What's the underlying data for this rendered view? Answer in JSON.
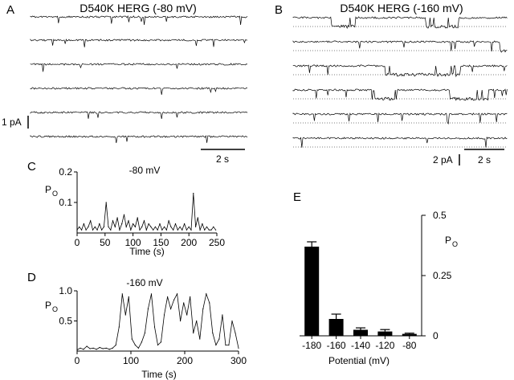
{
  "panels": {
    "A": {
      "letter": "A",
      "title": "D540K HERG (-80 mV)",
      "scale_current": "1 pA",
      "scale_time": "2 s",
      "trace_count": 6
    },
    "B": {
      "letter": "B",
      "title": "D540K HERG (-160 mV)",
      "scale_current": "2 pA",
      "scale_time": "2 s",
      "trace_count": 6
    }
  },
  "chart_data": [
    {
      "id": "C",
      "letter": "C",
      "type": "line",
      "annotation": "-80 mV",
      "ylabel": "P",
      "ylabel_sub": "O",
      "xlabel": "Time (s)",
      "xlim": [
        0,
        250
      ],
      "ylim": [
        0,
        0.2
      ],
      "xticks": [
        0,
        50,
        100,
        150,
        200,
        250
      ],
      "yticks": [
        0.1,
        0.2
      ],
      "ytick_labels": [
        "0.1",
        "0.2"
      ],
      "x": [
        0,
        4,
        8,
        12,
        16,
        20,
        24,
        28,
        32,
        36,
        40,
        44,
        48,
        52,
        56,
        60,
        64,
        68,
        72,
        76,
        80,
        84,
        88,
        92,
        96,
        100,
        104,
        108,
        112,
        116,
        120,
        124,
        128,
        132,
        136,
        140,
        144,
        148,
        152,
        156,
        160,
        164,
        168,
        172,
        176,
        180,
        184,
        188,
        192,
        196,
        200,
        204,
        208,
        212,
        216,
        220,
        224,
        228,
        232,
        236,
        240,
        244,
        248
      ],
      "values": [
        0.01,
        0.02,
        0.01,
        0.03,
        0.01,
        0.02,
        0.04,
        0.01,
        0.02,
        0.01,
        0.03,
        0.01,
        0.02,
        0.1,
        0.02,
        0.01,
        0.04,
        0.02,
        0.05,
        0.01,
        0.03,
        0.06,
        0.02,
        0.04,
        0.01,
        0.03,
        0.02,
        0.05,
        0.01,
        0.02,
        0.04,
        0.01,
        0.03,
        0.02,
        0.01,
        0.02,
        0.01,
        0.03,
        0.01,
        0.02,
        0.01,
        0.04,
        0.02,
        0.01,
        0.03,
        0.01,
        0.02,
        0.01,
        0.03,
        0.01,
        0.02,
        0.01,
        0.13,
        0.02,
        0.05,
        0.01,
        0.03,
        0.01,
        0.02,
        0.01,
        0.01,
        0.02,
        0.01
      ]
    },
    {
      "id": "D",
      "letter": "D",
      "type": "line",
      "annotation": "-160 mV",
      "ylabel": "P",
      "ylabel_sub": "O",
      "xlabel": "Time (s)",
      "xlim": [
        0,
        300
      ],
      "ylim": [
        0,
        1.0
      ],
      "xticks": [
        0,
        100,
        200,
        300
      ],
      "yticks": [
        0.5,
        1.0
      ],
      "ytick_labels": [
        "0.5",
        "1.0"
      ],
      "x": [
        0,
        6,
        12,
        18,
        24,
        30,
        36,
        42,
        48,
        54,
        60,
        66,
        72,
        78,
        84,
        90,
        96,
        102,
        108,
        114,
        120,
        126,
        132,
        138,
        144,
        150,
        156,
        162,
        168,
        174,
        180,
        186,
        192,
        198,
        204,
        210,
        216,
        222,
        228,
        234,
        240,
        246,
        252,
        258,
        264,
        270,
        276,
        282,
        288,
        294,
        300
      ],
      "values": [
        0.02,
        0.05,
        0.03,
        0.08,
        0.04,
        0.05,
        0.03,
        0.06,
        0.04,
        0.05,
        0.03,
        0.05,
        0.1,
        0.4,
        0.95,
        0.6,
        0.9,
        0.2,
        0.1,
        0.05,
        0.15,
        0.3,
        0.7,
        0.95,
        0.4,
        0.1,
        0.15,
        0.6,
        0.9,
        0.7,
        0.85,
        0.95,
        0.5,
        0.8,
        0.6,
        0.9,
        0.3,
        0.5,
        0.2,
        0.7,
        0.95,
        0.8,
        0.3,
        0.1,
        0.2,
        0.6,
        0.1,
        0.1,
        0.5,
        0.3,
        0.05
      ]
    },
    {
      "id": "E",
      "letter": "E",
      "type": "bar",
      "ylabel": "P",
      "ylabel_sub": "O",
      "xlabel": "Potential (mV)",
      "categories": [
        "-180",
        "-160",
        "-140",
        "-120",
        "-80"
      ],
      "values": [
        0.37,
        0.07,
        0.025,
        0.018,
        0.008
      ],
      "errors": [
        0.02,
        0.02,
        0.008,
        0.008,
        0.003
      ],
      "ylim": [
        0,
        0.5
      ],
      "yticks": [
        0,
        0.25,
        0.5
      ],
      "ytick_labels": [
        "0",
        "0.25",
        "0.5"
      ],
      "axis_side": "right"
    }
  ]
}
